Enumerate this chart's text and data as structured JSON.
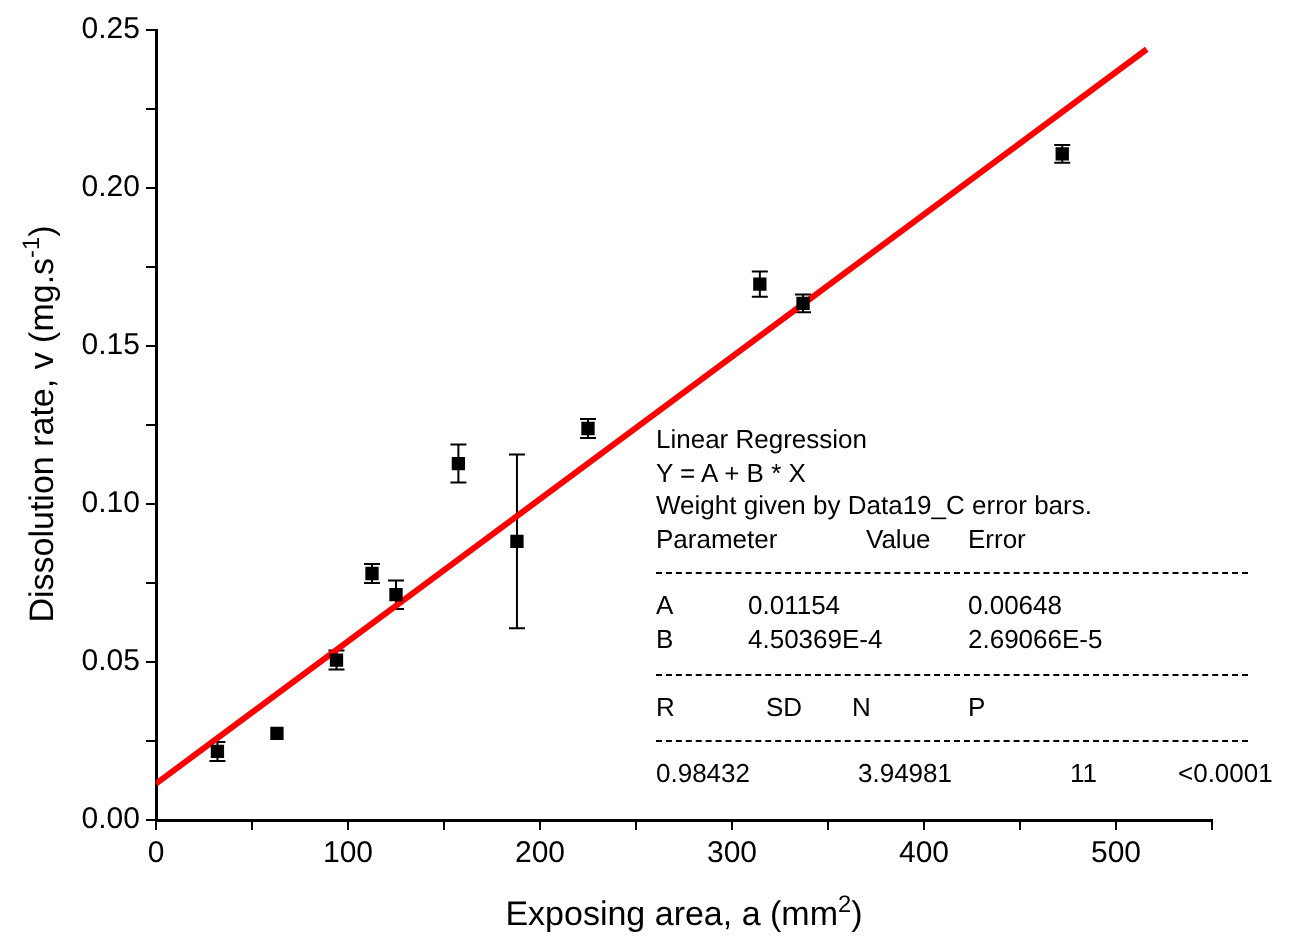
{
  "chart_data": {
    "type": "scatter",
    "xlabel": "Exposing area, a (mm$^{2}$)",
    "ylabel": "Dissolution rate, v (mg.s$^{-1}$)",
    "xlim": [
      0,
      550
    ],
    "ylim": [
      0,
      0.25
    ],
    "xticks": [
      0,
      {
        "value": 50,
        "label": null
      },
      100,
      {
        "value": 150,
        "label": null
      },
      200,
      {
        "value": 250,
        "label": null
      },
      300,
      {
        "value": 350,
        "label": null
      },
      400,
      {
        "value": 450,
        "label": null
      },
      500,
      {
        "value": 550,
        "label": null
      }
    ],
    "yticks": [
      {
        "value": 0,
        "label": "0.00"
      },
      {
        "value": 0.025,
        "label": null
      },
      0.05,
      {
        "value": 0.075,
        "label": null
      },
      {
        "value": 0.1,
        "label": "0.10"
      },
      {
        "value": 0.125,
        "label": null
      },
      0.15,
      {
        "value": 0.175,
        "label": null
      },
      {
        "value": 0.2,
        "label": "0.20"
      },
      {
        "value": 0.225,
        "label": null
      },
      0.25
    ],
    "series": [
      {
        "type": "scatter",
        "color": "#000000",
        "marker": "square",
        "x": [
          32,
          63,
          94,
          112.5,
          125,
          157.5,
          188,
          225,
          314.5,
          337,
          472
        ],
        "values": [
          0.0217,
          0.0274,
          0.0506,
          0.078,
          0.0713,
          0.1128,
          0.0882,
          0.1239,
          0.1696,
          0.1635,
          0.2108
        ],
        "errors": [
          0.003,
          null,
          0.003,
          0.003,
          0.0045,
          0.006,
          0.0275,
          0.003,
          0.004,
          0.0028,
          0.0028
        ]
      },
      {
        "type": "line",
        "color": "#ff0000",
        "line_style": "solid",
        "marker": "none",
        "x": [
          0,
          516
        ],
        "values": [
          0.0115,
          0.2439
        ]
      }
    ],
    "annotations": [
      "Linear Regression",
      "Y = A + B * X",
      "Weight given by Data19_C error bars.",
      "Parameter\tValue\tError",
      "A\t0.01154\t0.00648",
      "B\t4.50369E-4\t2.69066E-5",
      "R\tSD\tN\tP",
      "0.98432\t3.94981\t11\t<0.0001"
    ]
  }
}
